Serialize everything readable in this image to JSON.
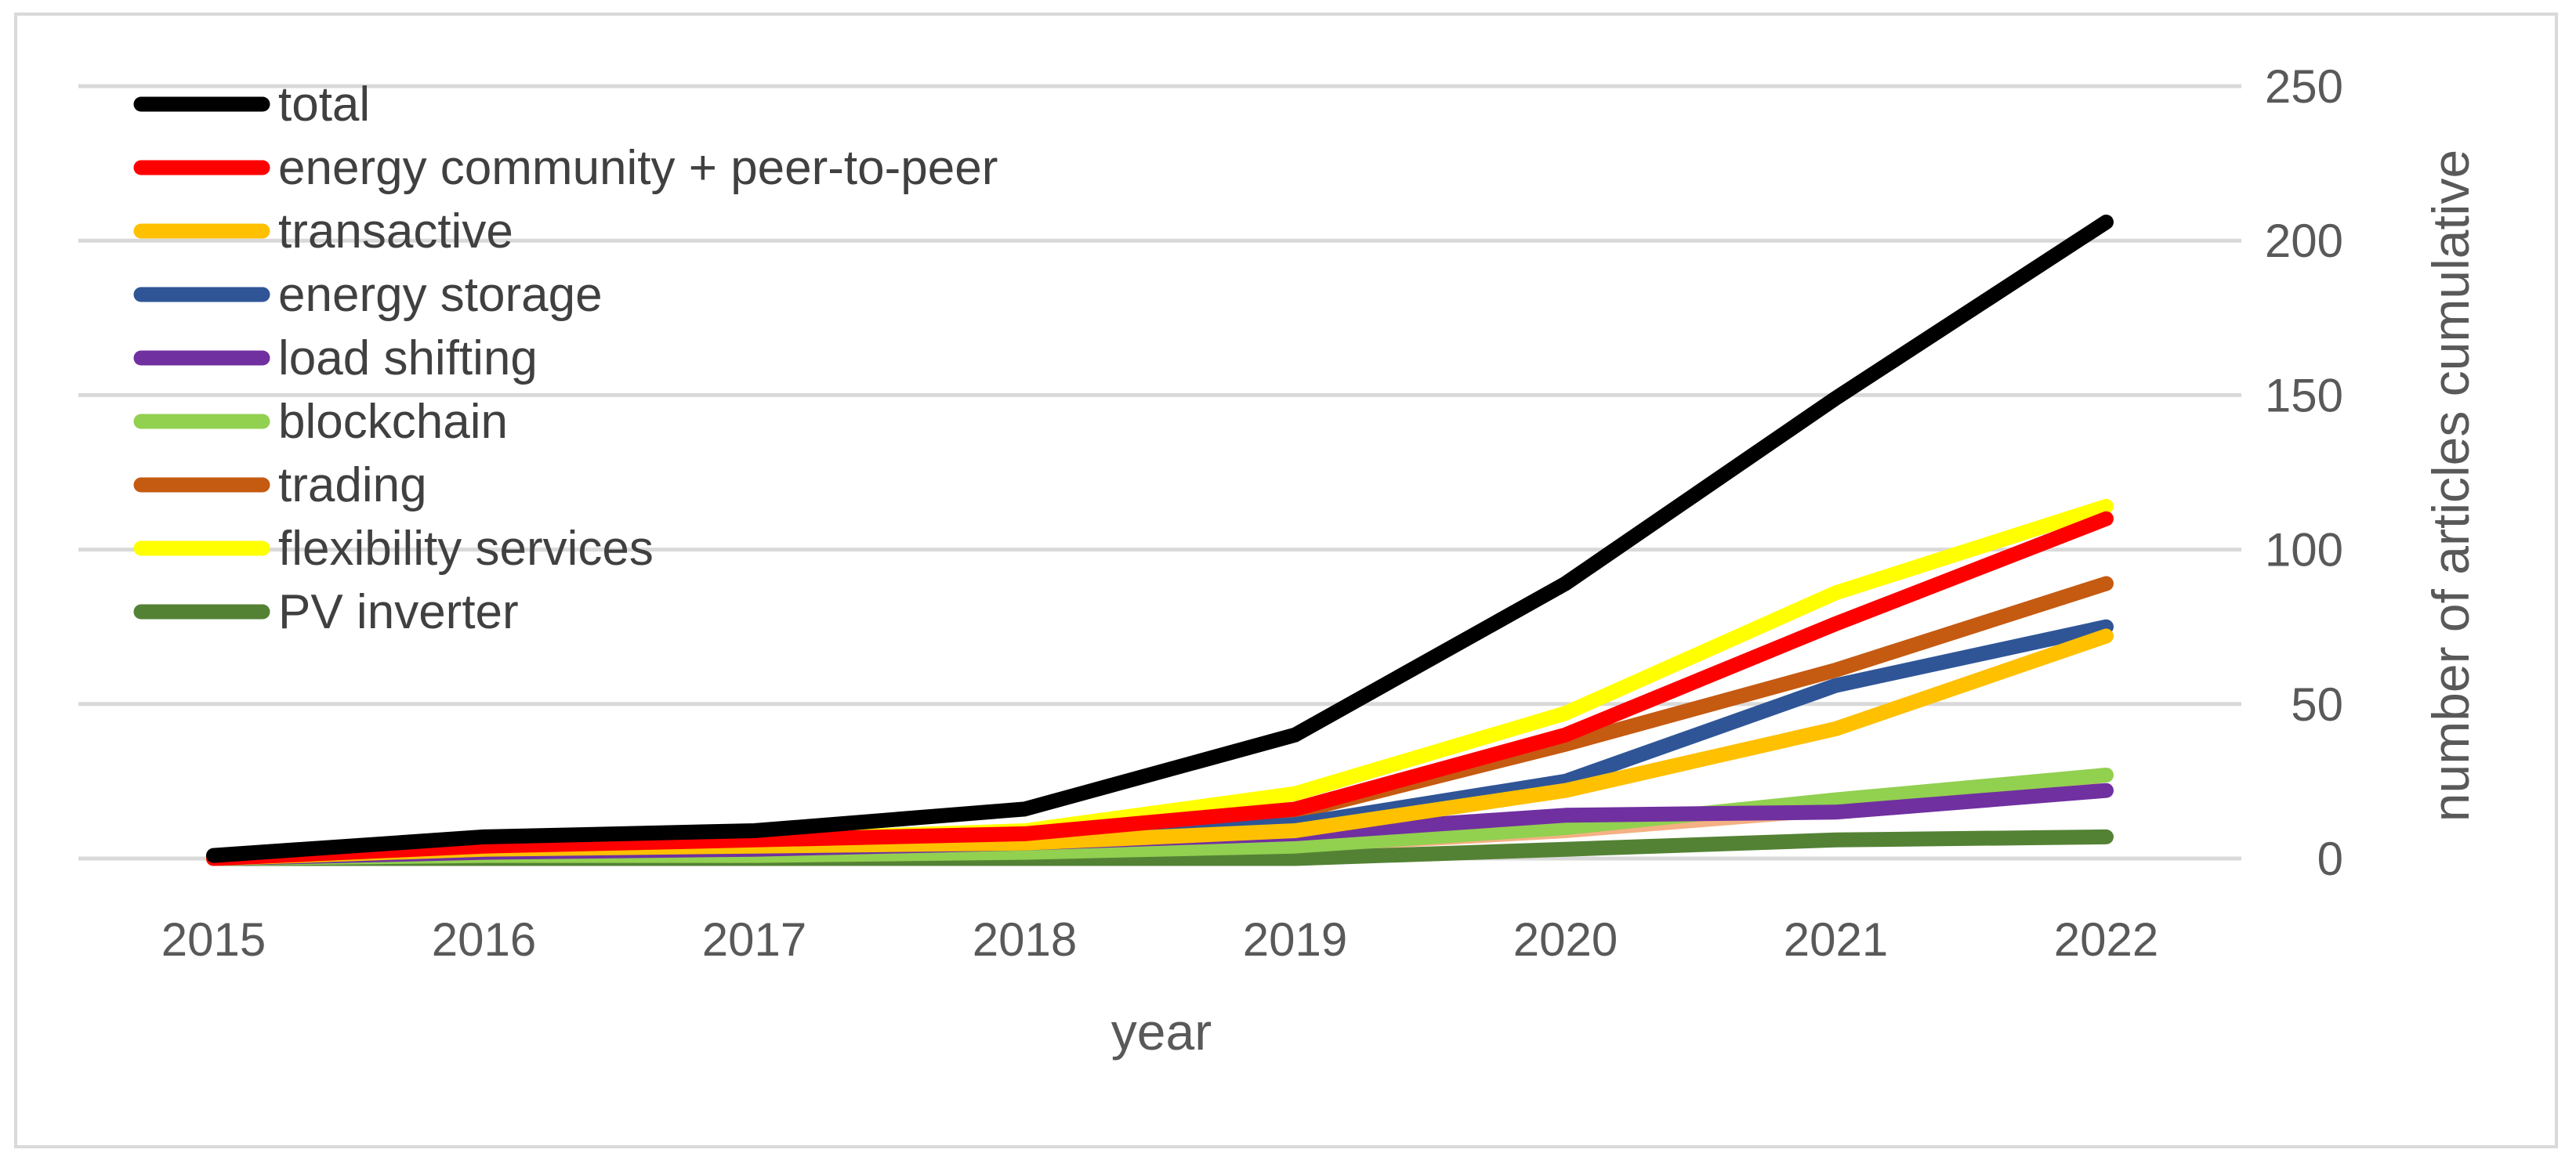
{
  "chart_data": {
    "type": "line",
    "title": "",
    "xlabel": "year",
    "ylabel": "number of articles cumulative",
    "ylim": [
      0,
      250
    ],
    "yticks": [
      0,
      50,
      100,
      150,
      200,
      250
    ],
    "y_axis_side": "right",
    "grid": true,
    "legend_position": "top-left",
    "categories": [
      "2015",
      "2016",
      "2017",
      "2018",
      "2019",
      "2020",
      "2021",
      "2022"
    ],
    "series": [
      {
        "name": "total",
        "color": "#000000",
        "values": [
          1,
          7,
          9,
          16,
          40,
          89,
          149,
          206
        ]
      },
      {
        "name": "energy community + peer-to-peer",
        "color": "#ff0000",
        "values": [
          0,
          4,
          6,
          8,
          16,
          40,
          76,
          110
        ]
      },
      {
        "name": "transactive",
        "color": "#ffc000",
        "values": [
          0,
          3,
          4,
          5,
          9,
          22,
          42,
          72
        ]
      },
      {
        "name": "energy storage",
        "color": "#2f5597",
        "values": [
          0,
          3,
          4,
          5,
          11,
          25,
          56,
          75
        ]
      },
      {
        "name": "load shifting",
        "color": "#7030a0",
        "values": [
          0,
          2,
          3,
          5,
          8,
          14,
          15,
          22
        ]
      },
      {
        "name": "blockchain",
        "color": "#92d050",
        "values": [
          0,
          1,
          1,
          2,
          4,
          10,
          19,
          27
        ]
      },
      {
        "name": "trading",
        "color": "#c55a11",
        "values": [
          0,
          3,
          5,
          6,
          15,
          37,
          61,
          89
        ]
      },
      {
        "name": "flexibility services",
        "color": "#ffff00",
        "values": [
          0,
          4,
          6,
          9,
          21,
          47,
          86,
          114
        ]
      },
      {
        "name": "PV inverter",
        "color": "#548235",
        "values": [
          0,
          0,
          0,
          0,
          0,
          3,
          6,
          7
        ]
      },
      {
        "name": "",
        "color": "#f4b183",
        "values": [
          0,
          1,
          1,
          2,
          4,
          9,
          16,
          27
        ]
      }
    ]
  }
}
